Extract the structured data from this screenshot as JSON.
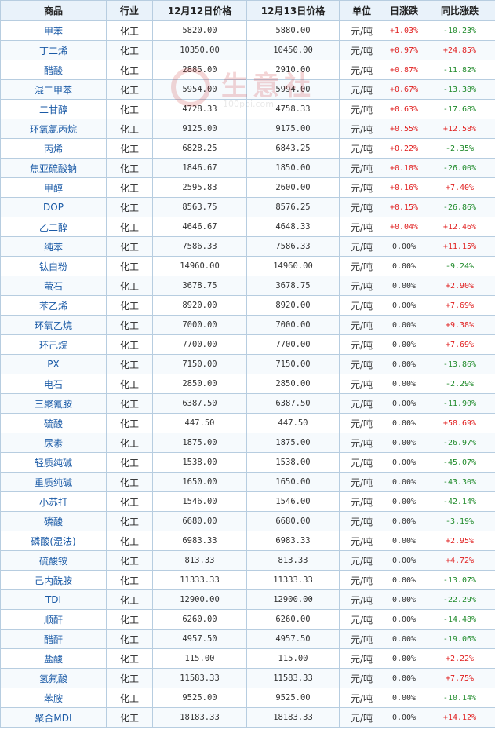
{
  "headers": [
    "商品",
    "行业",
    "12月12日价格",
    "12月13日价格",
    "单位",
    "日涨跌",
    "同比涨跌"
  ],
  "watermark": {
    "text": "生意社",
    "url": "100ppi.com"
  },
  "rows": [
    {
      "name": "甲苯",
      "industry": "化工",
      "price1": "5820.00",
      "price2": "5880.00",
      "unit": "元/吨",
      "daily": "+1.03%",
      "yoy": "-10.23%"
    },
    {
      "name": "丁二烯",
      "industry": "化工",
      "price1": "10350.00",
      "price2": "10450.00",
      "unit": "元/吨",
      "daily": "+0.97%",
      "yoy": "+24.85%"
    },
    {
      "name": "醋酸",
      "industry": "化工",
      "price1": "2885.00",
      "price2": "2910.00",
      "unit": "元/吨",
      "daily": "+0.87%",
      "yoy": "-11.82%"
    },
    {
      "name": "混二甲苯",
      "industry": "化工",
      "price1": "5954.00",
      "price2": "5994.00",
      "unit": "元/吨",
      "daily": "+0.67%",
      "yoy": "-13.38%"
    },
    {
      "name": "二甘醇",
      "industry": "化工",
      "price1": "4728.33",
      "price2": "4758.33",
      "unit": "元/吨",
      "daily": "+0.63%",
      "yoy": "-17.68%"
    },
    {
      "name": "环氧氯丙烷",
      "industry": "化工",
      "price1": "9125.00",
      "price2": "9175.00",
      "unit": "元/吨",
      "daily": "+0.55%",
      "yoy": "+12.58%"
    },
    {
      "name": "丙烯",
      "industry": "化工",
      "price1": "6828.25",
      "price2": "6843.25",
      "unit": "元/吨",
      "daily": "+0.22%",
      "yoy": "-2.35%"
    },
    {
      "name": "焦亚硫酸钠",
      "industry": "化工",
      "price1": "1846.67",
      "price2": "1850.00",
      "unit": "元/吨",
      "daily": "+0.18%",
      "yoy": "-26.00%"
    },
    {
      "name": "甲醇",
      "industry": "化工",
      "price1": "2595.83",
      "price2": "2600.00",
      "unit": "元/吨",
      "daily": "+0.16%",
      "yoy": "+7.40%"
    },
    {
      "name": "DOP",
      "industry": "化工",
      "price1": "8563.75",
      "price2": "8576.25",
      "unit": "元/吨",
      "daily": "+0.15%",
      "yoy": "-26.86%"
    },
    {
      "name": "乙二醇",
      "industry": "化工",
      "price1": "4646.67",
      "price2": "4648.33",
      "unit": "元/吨",
      "daily": "+0.04%",
      "yoy": "+12.46%"
    },
    {
      "name": "纯苯",
      "industry": "化工",
      "price1": "7586.33",
      "price2": "7586.33",
      "unit": "元/吨",
      "daily": "0.00%",
      "yoy": "+11.15%"
    },
    {
      "name": "钛白粉",
      "industry": "化工",
      "price1": "14960.00",
      "price2": "14960.00",
      "unit": "元/吨",
      "daily": "0.00%",
      "yoy": "-9.24%"
    },
    {
      "name": "萤石",
      "industry": "化工",
      "price1": "3678.75",
      "price2": "3678.75",
      "unit": "元/吨",
      "daily": "0.00%",
      "yoy": "+2.90%"
    },
    {
      "name": "苯乙烯",
      "industry": "化工",
      "price1": "8920.00",
      "price2": "8920.00",
      "unit": "元/吨",
      "daily": "0.00%",
      "yoy": "+7.69%"
    },
    {
      "name": "环氧乙烷",
      "industry": "化工",
      "price1": "7000.00",
      "price2": "7000.00",
      "unit": "元/吨",
      "daily": "0.00%",
      "yoy": "+9.38%"
    },
    {
      "name": "环己烷",
      "industry": "化工",
      "price1": "7700.00",
      "price2": "7700.00",
      "unit": "元/吨",
      "daily": "0.00%",
      "yoy": "+7.69%"
    },
    {
      "name": "PX",
      "industry": "化工",
      "price1": "7150.00",
      "price2": "7150.00",
      "unit": "元/吨",
      "daily": "0.00%",
      "yoy": "-13.86%"
    },
    {
      "name": "电石",
      "industry": "化工",
      "price1": "2850.00",
      "price2": "2850.00",
      "unit": "元/吨",
      "daily": "0.00%",
      "yoy": "-2.29%"
    },
    {
      "name": "三聚氰胺",
      "industry": "化工",
      "price1": "6387.50",
      "price2": "6387.50",
      "unit": "元/吨",
      "daily": "0.00%",
      "yoy": "-11.90%"
    },
    {
      "name": "硫酸",
      "industry": "化工",
      "price1": "447.50",
      "price2": "447.50",
      "unit": "元/吨",
      "daily": "0.00%",
      "yoy": "+58.69%"
    },
    {
      "name": "尿素",
      "industry": "化工",
      "price1": "1875.00",
      "price2": "1875.00",
      "unit": "元/吨",
      "daily": "0.00%",
      "yoy": "-26.97%"
    },
    {
      "name": "轻质纯碱",
      "industry": "化工",
      "price1": "1538.00",
      "price2": "1538.00",
      "unit": "元/吨",
      "daily": "0.00%",
      "yoy": "-45.07%"
    },
    {
      "name": "重质纯碱",
      "industry": "化工",
      "price1": "1650.00",
      "price2": "1650.00",
      "unit": "元/吨",
      "daily": "0.00%",
      "yoy": "-43.30%"
    },
    {
      "name": "小苏打",
      "industry": "化工",
      "price1": "1546.00",
      "price2": "1546.00",
      "unit": "元/吨",
      "daily": "0.00%",
      "yoy": "-42.14%"
    },
    {
      "name": "磷酸",
      "industry": "化工",
      "price1": "6680.00",
      "price2": "6680.00",
      "unit": "元/吨",
      "daily": "0.00%",
      "yoy": "-3.19%"
    },
    {
      "name": "磷酸(湿法)",
      "industry": "化工",
      "price1": "6983.33",
      "price2": "6983.33",
      "unit": "元/吨",
      "daily": "0.00%",
      "yoy": "+2.95%"
    },
    {
      "name": "硫酸铵",
      "industry": "化工",
      "price1": "813.33",
      "price2": "813.33",
      "unit": "元/吨",
      "daily": "0.00%",
      "yoy": "+4.72%"
    },
    {
      "name": "己内酰胺",
      "industry": "化工",
      "price1": "11333.33",
      "price2": "11333.33",
      "unit": "元/吨",
      "daily": "0.00%",
      "yoy": "-13.07%"
    },
    {
      "name": "TDI",
      "industry": "化工",
      "price1": "12900.00",
      "price2": "12900.00",
      "unit": "元/吨",
      "daily": "0.00%",
      "yoy": "-22.29%"
    },
    {
      "name": "顺酐",
      "industry": "化工",
      "price1": "6260.00",
      "price2": "6260.00",
      "unit": "元/吨",
      "daily": "0.00%",
      "yoy": "-14.48%"
    },
    {
      "name": "醋酐",
      "industry": "化工",
      "price1": "4957.50",
      "price2": "4957.50",
      "unit": "元/吨",
      "daily": "0.00%",
      "yoy": "-19.06%"
    },
    {
      "name": "盐酸",
      "industry": "化工",
      "price1": "115.00",
      "price2": "115.00",
      "unit": "元/吨",
      "daily": "0.00%",
      "yoy": "+2.22%"
    },
    {
      "name": "氢氟酸",
      "industry": "化工",
      "price1": "11583.33",
      "price2": "11583.33",
      "unit": "元/吨",
      "daily": "0.00%",
      "yoy": "+7.75%"
    },
    {
      "name": "苯胺",
      "industry": "化工",
      "price1": "9525.00",
      "price2": "9525.00",
      "unit": "元/吨",
      "daily": "0.00%",
      "yoy": "-10.14%"
    },
    {
      "name": "聚合MDI",
      "industry": "化工",
      "price1": "18183.33",
      "price2": "18183.33",
      "unit": "元/吨",
      "daily": "0.00%",
      "yoy": "+14.12%"
    }
  ]
}
